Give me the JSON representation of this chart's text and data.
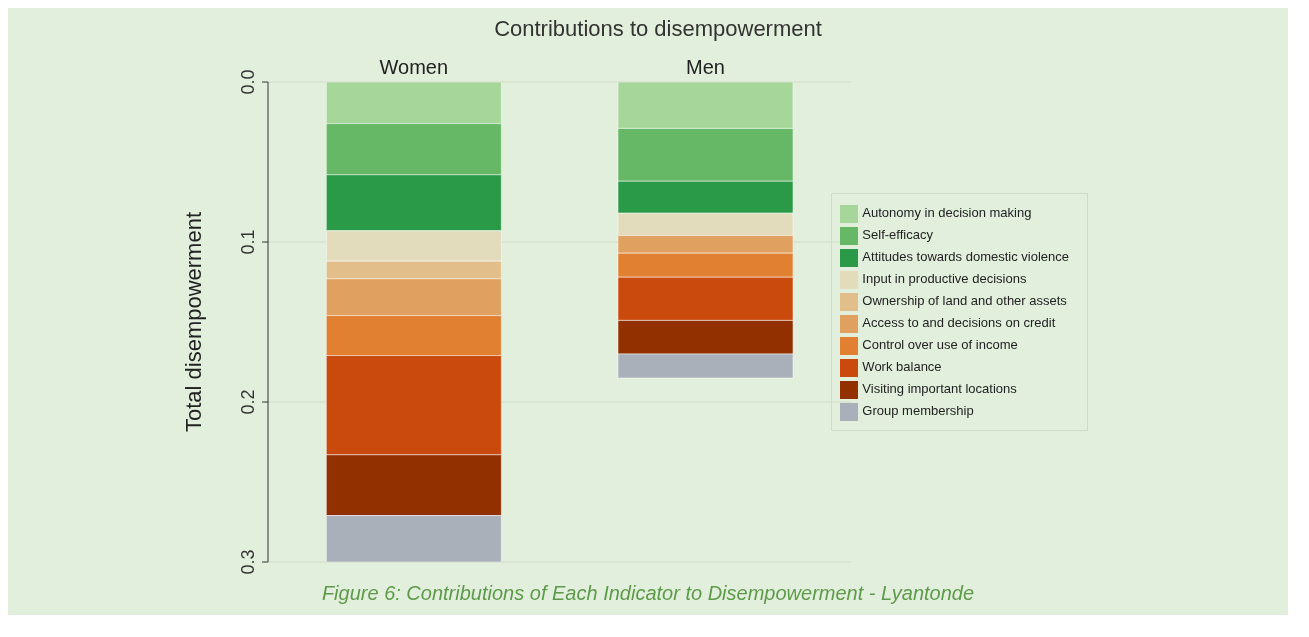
{
  "chart_data": {
    "type": "bar",
    "title": "Contributions to disempowerment",
    "ylabel": "Total disempowerment",
    "categories": [
      "Women",
      "Men"
    ],
    "stacked": true,
    "series": [
      {
        "name": "Autonomy in decision making",
        "color": "#a6d69a",
        "values": [
          0.026,
          0.029
        ]
      },
      {
        "name": "Self-efficacy",
        "color": "#66b866",
        "values": [
          0.032,
          0.033
        ]
      },
      {
        "name": "Attitudes towards domestic violence",
        "color": "#2a9a48",
        "values": [
          0.035,
          0.02
        ]
      },
      {
        "name": "Input in productive decisions",
        "color": "#e2dcbc",
        "values": [
          0.019,
          0.014
        ]
      },
      {
        "name": "Ownership of land and other assets",
        "color": "#e2bf8a",
        "values": [
          0.011,
          0
        ]
      },
      {
        "name": "Access to and decisions on credit",
        "color": "#e0a060",
        "values": [
          0.023,
          0.011
        ]
      },
      {
        "name": "Control over use of income",
        "color": "#e08030",
        "values": [
          0.025,
          0.015
        ]
      },
      {
        "name": "Work balance",
        "color": "#c94a0c",
        "values": [
          0.062,
          0.027
        ]
      },
      {
        "name": "Visiting important locations",
        "color": "#923000",
        "values": [
          0.038,
          0.021
        ]
      },
      {
        "name": "Group membership",
        "color": "#a9b0ba",
        "values": [
          0.03,
          0.015
        ]
      }
    ],
    "ylim": [
      0.3,
      0
    ],
    "yticks": [
      {
        "value": 0,
        "label": "0.0"
      },
      0.1,
      0.2,
      0.3
    ],
    "grid": "y",
    "legend": "right",
    "annotations": [
      "Figure 6: Contributions of Each Indicator to Disempowerment - Lyantonde"
    ]
  }
}
